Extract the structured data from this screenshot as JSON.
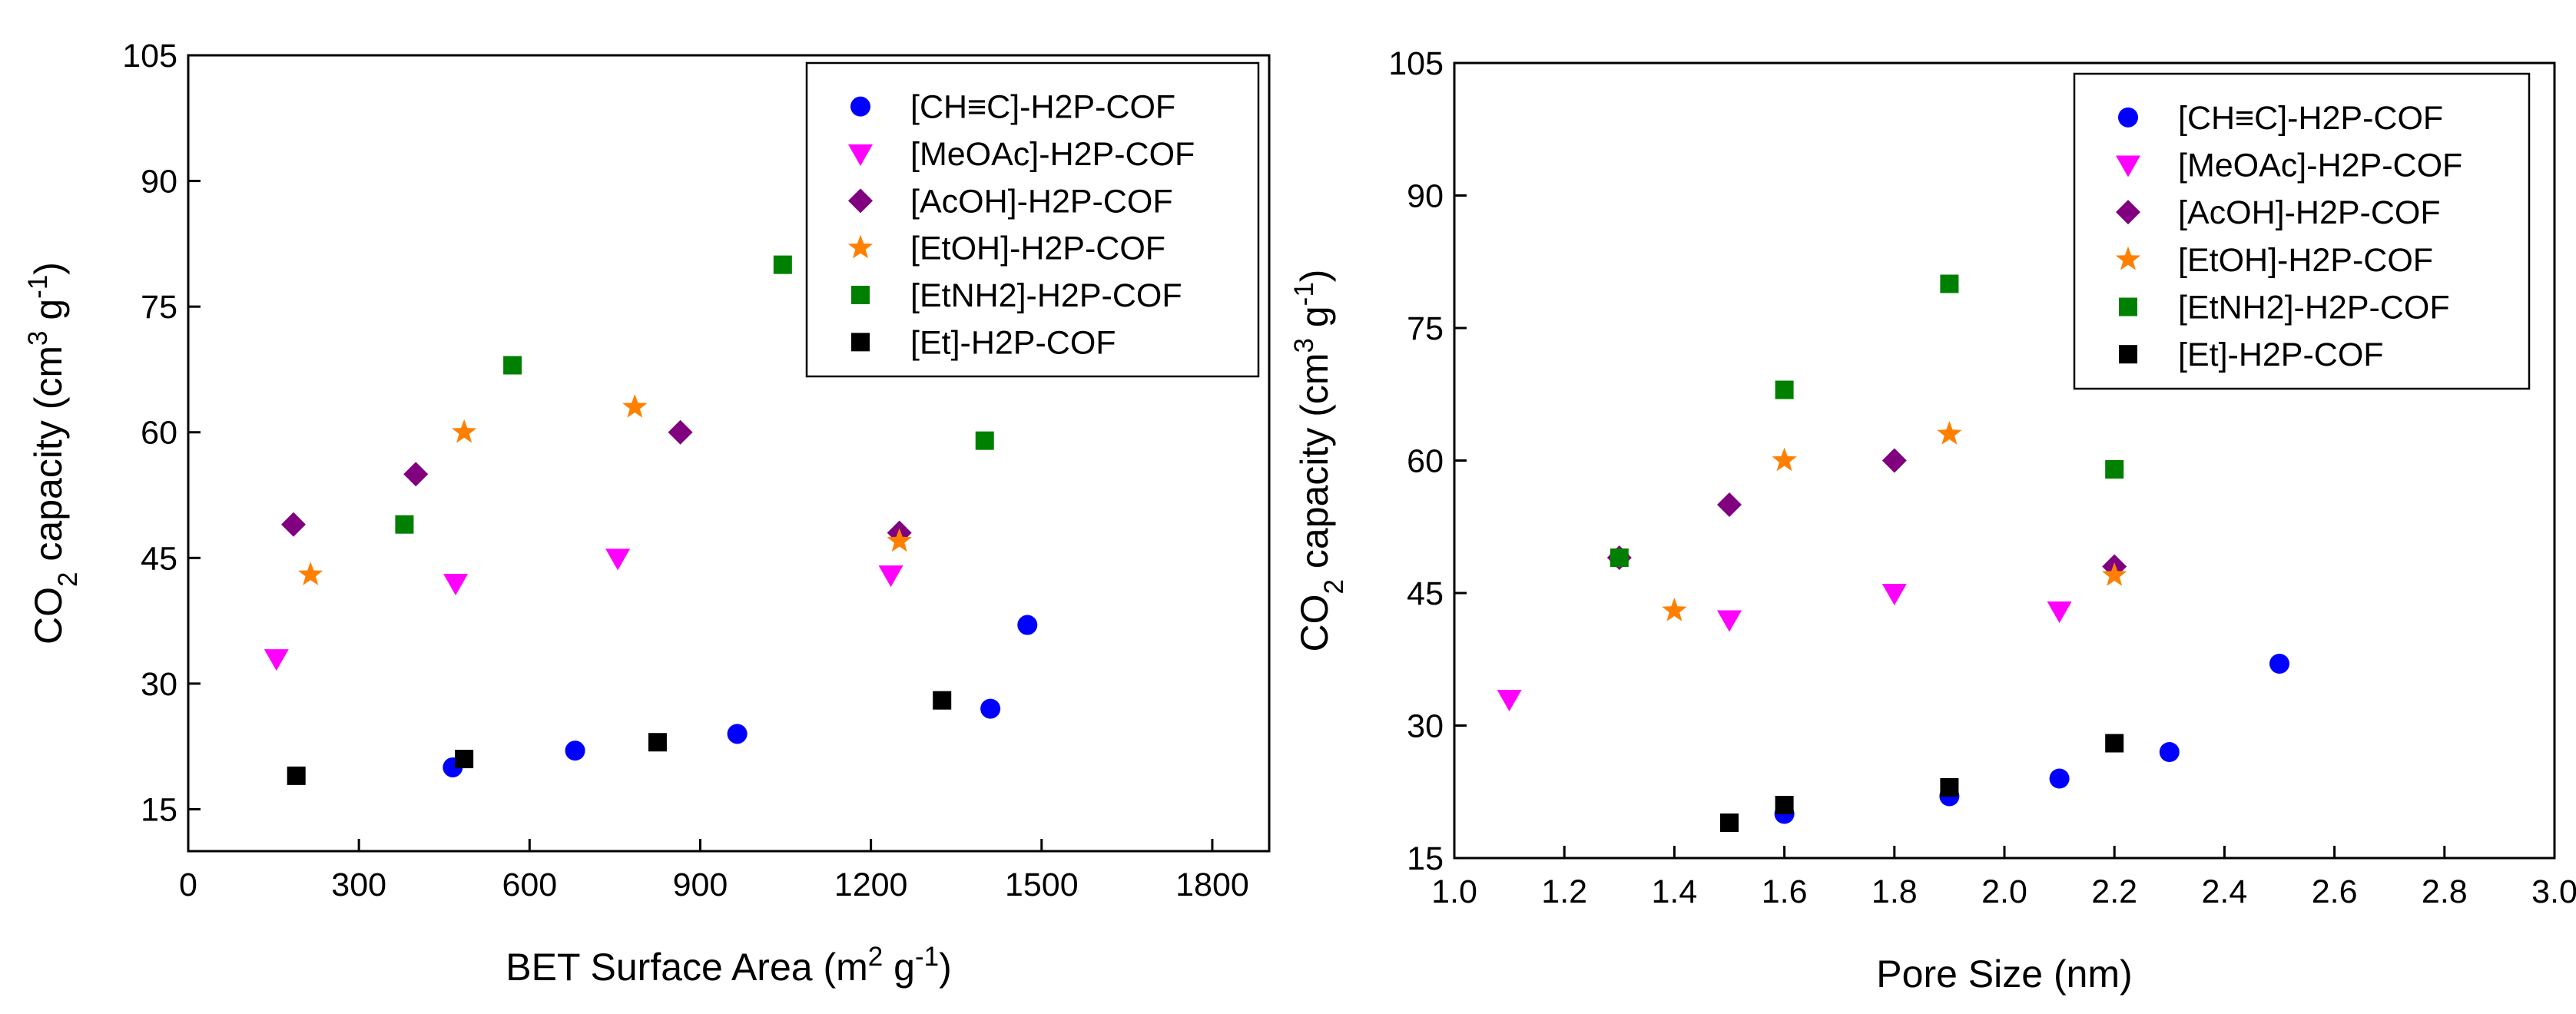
{
  "chart_data": [
    {
      "type": "scatter",
      "title": "",
      "xlabel": "BET Surface Area (m² g⁻¹)",
      "ylabel": "CO₂ capacity (cm³ g⁻¹)",
      "xlim": [
        0,
        1900
      ],
      "ylim": [
        10,
        105
      ],
      "xticks": [
        "0",
        "300",
        "600",
        "900",
        "1200",
        "1500",
        "1800"
      ],
      "yticks": [
        "15",
        "30",
        "45",
        "60",
        "75",
        "90",
        "105"
      ],
      "legend_position": "top-right",
      "grid": false,
      "series": [
        {
          "name": "[CH≡C]-H2P-COF",
          "marker": "circle",
          "color": "#0000ff",
          "points": [
            [
              465,
              20
            ],
            [
              680,
              22
            ],
            [
              965,
              24
            ],
            [
              1410,
              27
            ],
            [
              1475,
              37
            ]
          ]
        },
        {
          "name": "[MeOAc]-H2P-COF",
          "marker": "triangle-down",
          "color": "#ff00ff",
          "points": [
            [
              155,
              33
            ],
            [
              470,
              42
            ],
            [
              755,
              45
            ],
            [
              1235,
              43
            ]
          ]
        },
        {
          "name": "[AcOH]-H2P-COF",
          "marker": "diamond",
          "color": "#800080",
          "points": [
            [
              185,
              49
            ],
            [
              400,
              55
            ],
            [
              865,
              60
            ],
            [
              1250,
              48
            ]
          ]
        },
        {
          "name": "[EtOH]-H2P-COF",
          "marker": "star",
          "color": "#ff8000",
          "points": [
            [
              215,
              43
            ],
            [
              485,
              60
            ],
            [
              785,
              63
            ],
            [
              1250,
              47
            ]
          ]
        },
        {
          "name": "[EtNH2]-H2P-COF",
          "marker": "square",
          "color": "#008000",
          "points": [
            [
              380,
              49
            ],
            [
              570,
              68
            ],
            [
              1045,
              80
            ],
            [
              1400,
              59
            ]
          ]
        },
        {
          "name": "[Et]-H2P-COF",
          "marker": "square",
          "color": "#000000",
          "points": [
            [
              190,
              19
            ],
            [
              485,
              21
            ],
            [
              825,
              23
            ],
            [
              1325,
              28
            ]
          ]
        }
      ]
    },
    {
      "type": "scatter",
      "title": "",
      "xlabel": "Pore Size (nm)",
      "ylabel": "CO₂ capacity (cm³ g⁻¹)",
      "xlim": [
        1.0,
        3.0
      ],
      "ylim": [
        15,
        105
      ],
      "xticks": [
        "1.0",
        "1.2",
        "1.4",
        "1.6",
        "1.8",
        "2.0",
        "2.2",
        "2.4",
        "2.6",
        "2.8",
        "3.0"
      ],
      "yticks": [
        "15",
        "30",
        "45",
        "60",
        "75",
        "90",
        "105"
      ],
      "legend_position": "top-right",
      "grid": false,
      "series": [
        {
          "name": "[CH≡C]-H2P-COF",
          "marker": "circle",
          "color": "#0000ff",
          "points": [
            [
              1.3,
              49
            ],
            [
              1.6,
              20
            ],
            [
              1.9,
              22
            ],
            [
              2.1,
              24
            ],
            [
              2.3,
              27
            ],
            [
              2.5,
              37
            ]
          ]
        },
        {
          "name": "[MeOAc]-H2P-COF",
          "marker": "triangle-down",
          "color": "#ff00ff",
          "points": [
            [
              1.1,
              33
            ],
            [
              1.5,
              42
            ],
            [
              1.8,
              45
            ],
            [
              2.1,
              43
            ]
          ]
        },
        {
          "name": "[AcOH]-H2P-COF",
          "marker": "diamond",
          "color": "#800080",
          "points": [
            [
              1.3,
              49
            ],
            [
              1.5,
              55
            ],
            [
              1.8,
              60
            ],
            [
              2.2,
              48
            ]
          ]
        },
        {
          "name": "[EtOH]-H2P-COF",
          "marker": "star",
          "color": "#ff8000",
          "points": [
            [
              1.4,
              43
            ],
            [
              1.6,
              60
            ],
            [
              1.9,
              63
            ],
            [
              2.2,
              47
            ]
          ]
        },
        {
          "name": "[EtNH2]-H2P-COF",
          "marker": "square",
          "color": "#008000",
          "points": [
            [
              1.3,
              49
            ],
            [
              1.6,
              68
            ],
            [
              1.9,
              80
            ],
            [
              2.2,
              59
            ]
          ]
        },
        {
          "name": "[Et]-H2P-COF",
          "marker": "square",
          "color": "#000000",
          "points": [
            [
              1.5,
              19
            ],
            [
              1.6,
              21
            ],
            [
              1.9,
              23
            ],
            [
              2.2,
              28
            ]
          ]
        }
      ]
    }
  ]
}
